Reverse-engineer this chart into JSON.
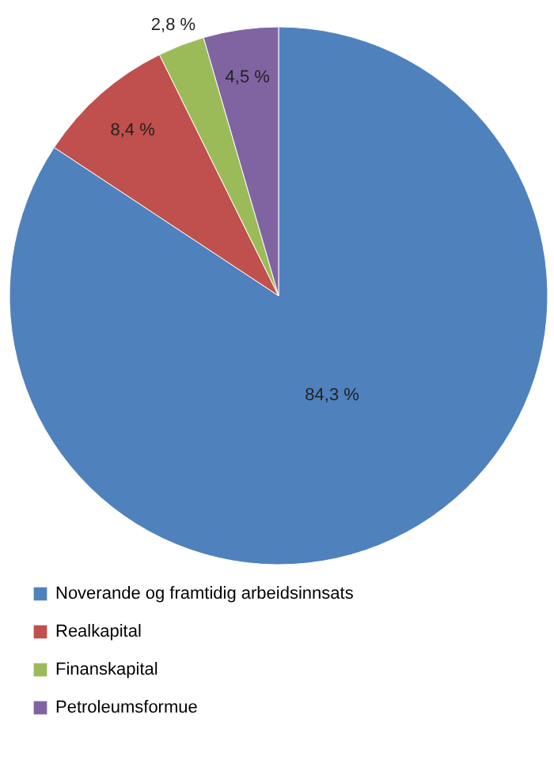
{
  "chart_data": {
    "type": "pie",
    "categories": [
      "Noverande og framtidig arbeidsinnsats",
      "Realkapital",
      "Finanskapital",
      "Petroleumsformue"
    ],
    "values": [
      84.3,
      8.4,
      2.8,
      4.5
    ],
    "colors": [
      "#4f81bd",
      "#c0504d",
      "#9bbb59",
      "#8064a2"
    ],
    "value_labels": [
      "84,3 %",
      "8,4 %",
      "2,8 %",
      "4,5 %"
    ],
    "legend": "bottom left"
  }
}
